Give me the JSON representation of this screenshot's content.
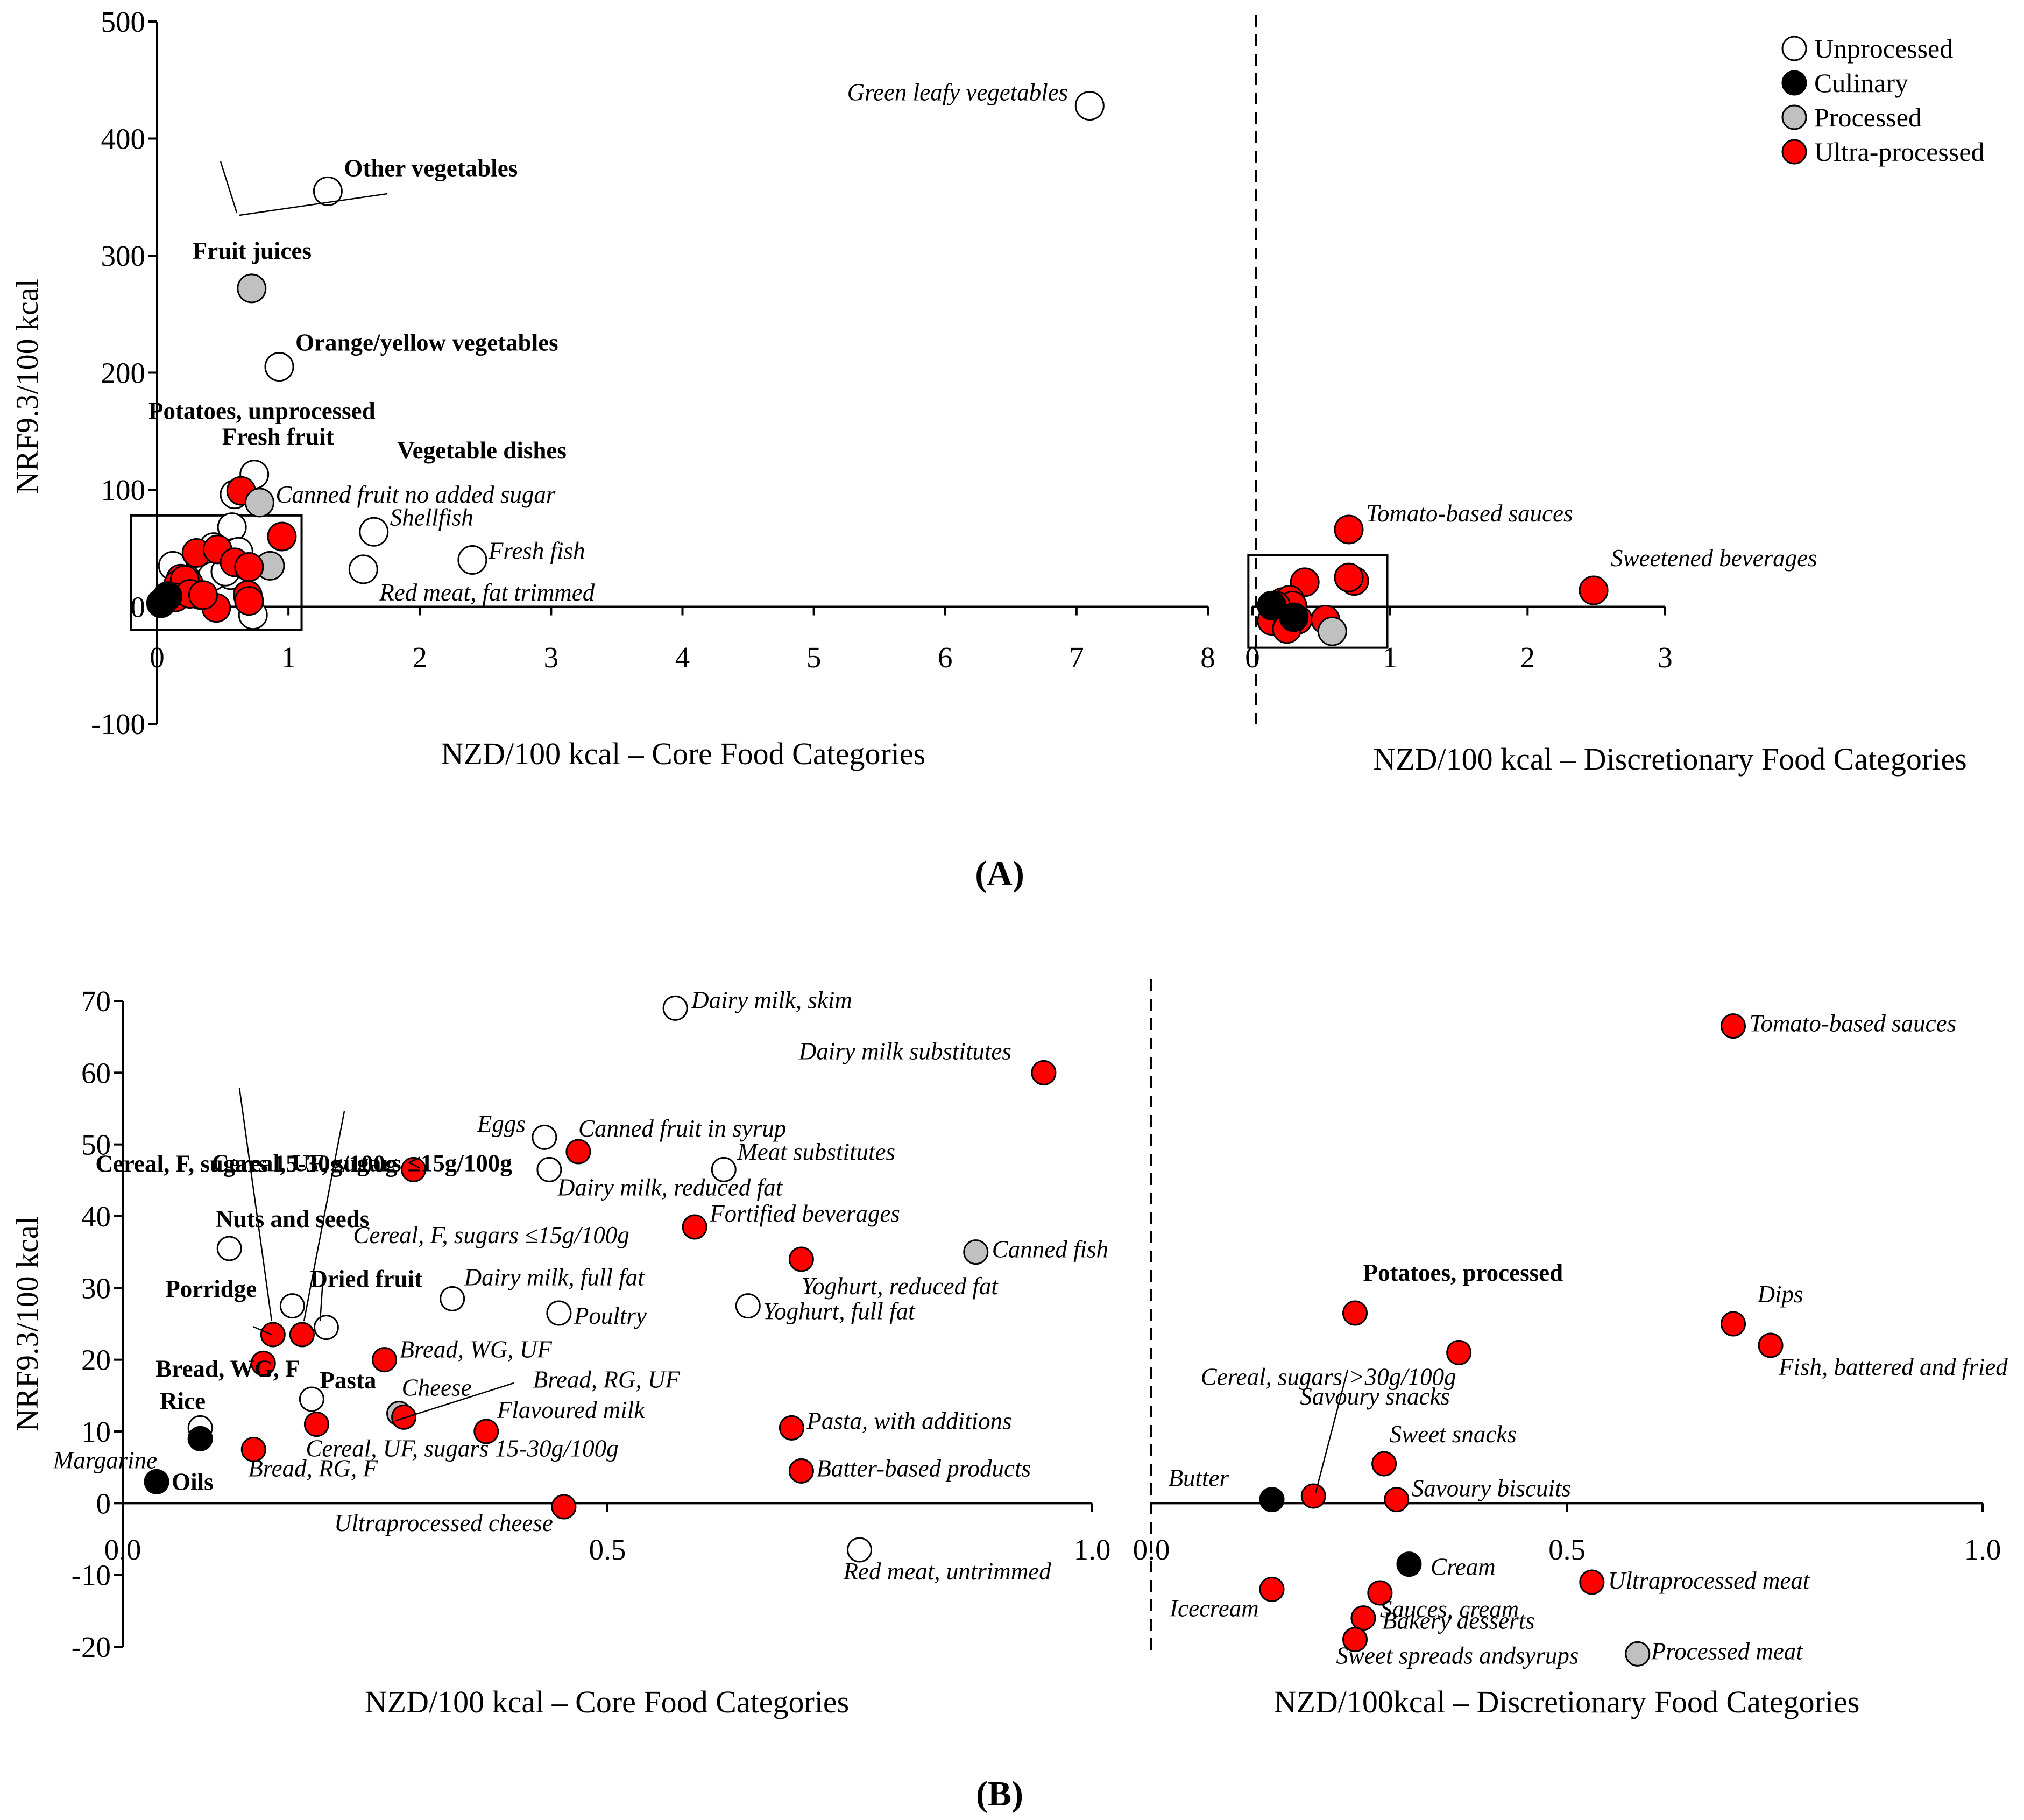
{
  "legend": [
    {
      "key": "U",
      "label": "Unprocessed",
      "color": "#ffffff"
    },
    {
      "key": "C",
      "label": "Culinary",
      "color": "#000000"
    },
    {
      "key": "P",
      "label": "Processed",
      "color": "#c0c0c0"
    },
    {
      "key": "X",
      "label": "Ultra-processed",
      "color": "#ff0000"
    }
  ],
  "panel_labels": {
    "A": "(A)",
    "B": "(B)"
  },
  "chart_data": [
    {
      "type": "scatter",
      "panel": "A",
      "ylabel": "NRF9.3/100 kcal",
      "ylim": [
        -100,
        500
      ],
      "yticks": [
        "-100",
        "0",
        "100",
        "200",
        "300",
        "400",
        "500"
      ],
      "left": {
        "xlabel": "NZD/100 kcal – Core Food Categories",
        "xlim": [
          0,
          8
        ],
        "xticks": [
          "0",
          "1",
          "2",
          "3",
          "4",
          "5",
          "6",
          "7",
          "8"
        ],
        "points": [
          {
            "x": 7.1,
            "y": 428,
            "type": "U",
            "label": "Green leafy vegetables",
            "style": "italic"
          },
          {
            "x": 1.3,
            "y": 355,
            "type": "U",
            "label": "Other vegetables",
            "style": "bold"
          },
          {
            "x": 0.72,
            "y": 272,
            "type": "P",
            "label": "Fruit juices",
            "style": "bold"
          },
          {
            "x": 0.93,
            "y": 205,
            "type": "U",
            "label": "Orange/yellow vegetables",
            "style": "bold"
          },
          {
            "x": 0.59,
            "y": 96,
            "type": "U",
            "label": "Potatoes, unprocessed",
            "style": "bold"
          },
          {
            "x": 0.74,
            "y": 113,
            "type": "U",
            "label": "Fresh fruit",
            "style": "bold"
          },
          {
            "x": 0.64,
            "y": 99,
            "type": "X",
            "label": "Vegetable dishes",
            "style": "bold"
          },
          {
            "x": 0.78,
            "y": 89,
            "type": "P",
            "label": "Canned fruit no added sugar",
            "style": "italic"
          },
          {
            "x": 1.65,
            "y": 64,
            "type": "U",
            "label": "Shellfish",
            "style": "italic"
          },
          {
            "x": 2.4,
            "y": 40,
            "type": "U",
            "label": "Fresh fish",
            "style": "italic"
          },
          {
            "x": 1.57,
            "y": 32,
            "type": "U",
            "label": "Red meat, fat trimmed",
            "style": "italic"
          },
          {
            "x": 0.57,
            "y": 68,
            "type": "U"
          },
          {
            "x": 0.95,
            "y": 60,
            "type": "X"
          },
          {
            "x": 0.22,
            "y": 24,
            "type": "U"
          },
          {
            "x": 0.12,
            "y": 35,
            "type": "U"
          },
          {
            "x": 0.43,
            "y": 51,
            "type": "U"
          },
          {
            "x": 0.58,
            "y": 46,
            "type": "U"
          },
          {
            "x": 0.62,
            "y": 47,
            "type": "U"
          },
          {
            "x": 0.42,
            "y": 26,
            "type": "U"
          },
          {
            "x": 0.56,
            "y": 27,
            "type": "U"
          },
          {
            "x": 0.52,
            "y": 30,
            "type": "U"
          },
          {
            "x": 0.73,
            "y": -7,
            "type": "U"
          },
          {
            "x": 0.86,
            "y": 35,
            "type": "P"
          },
          {
            "x": 0.17,
            "y": 12,
            "type": "P"
          },
          {
            "x": 0.18,
            "y": 13,
            "type": "U"
          },
          {
            "x": 0.3,
            "y": 46,
            "type": "X"
          },
          {
            "x": 0.46,
            "y": 49,
            "type": "X"
          },
          {
            "x": 0.59,
            "y": 38,
            "type": "X"
          },
          {
            "x": 0.7,
            "y": 34,
            "type": "X"
          },
          {
            "x": 0.69,
            "y": 10,
            "type": "X"
          },
          {
            "x": 0.7,
            "y": 5,
            "type": "X"
          },
          {
            "x": 0.45,
            "y": -1,
            "type": "X"
          },
          {
            "x": 0.18,
            "y": 24,
            "type": "X"
          },
          {
            "x": 0.16,
            "y": 19,
            "type": "X"
          },
          {
            "x": 0.24,
            "y": 20,
            "type": "X"
          },
          {
            "x": 0.21,
            "y": 23,
            "type": "X"
          },
          {
            "x": 0.33,
            "y": 10,
            "type": "X"
          },
          {
            "x": 0.14,
            "y": 8,
            "type": "X"
          },
          {
            "x": 0.25,
            "y": 11,
            "type": "X"
          },
          {
            "x": 0.35,
            "y": 10,
            "type": "X"
          },
          {
            "x": 0.08,
            "y": 9,
            "type": "C"
          },
          {
            "x": 0.03,
            "y": 3,
            "type": "C"
          }
        ]
      },
      "right": {
        "xlabel": "NZD/100 kcal – Discretionary Food Categories",
        "xlim": [
          0,
          3
        ],
        "xticks": [
          "0",
          "1",
          "2",
          "3"
        ],
        "points": [
          {
            "x": 0.7,
            "y": 66,
            "type": "X",
            "label": "Tomato-based sauces",
            "style": "italic"
          },
          {
            "x": 2.48,
            "y": 14,
            "type": "X",
            "label": "Sweetened beverages",
            "style": "italic"
          },
          {
            "x": 0.38,
            "y": 21,
            "type": "X"
          },
          {
            "x": 0.74,
            "y": 22,
            "type": "X"
          },
          {
            "x": 0.7,
            "y": 25,
            "type": "X"
          },
          {
            "x": 0.22,
            "y": 4,
            "type": "X"
          },
          {
            "x": 0.33,
            "y": -11,
            "type": "X"
          },
          {
            "x": 0.53,
            "y": -11,
            "type": "X"
          },
          {
            "x": 0.24,
            "y": -16,
            "type": "X"
          },
          {
            "x": 0.27,
            "y": 6,
            "type": "X"
          },
          {
            "x": 0.14,
            "y": -12,
            "type": "X"
          },
          {
            "x": 0.26,
            "y": -13,
            "type": "X"
          },
          {
            "x": 0.29,
            "y": 1,
            "type": "X"
          },
          {
            "x": 0.17,
            "y": 1,
            "type": "X"
          },
          {
            "x": 0.25,
            "y": -19,
            "type": "X"
          },
          {
            "x": 0.58,
            "y": -21,
            "type": "P"
          },
          {
            "x": 0.14,
            "y": 1,
            "type": "C"
          },
          {
            "x": 0.3,
            "y": -9,
            "type": "C"
          }
        ]
      }
    },
    {
      "type": "scatter",
      "panel": "B",
      "ylabel": "NRF9.3/100 kcal",
      "ylim": [
        -20,
        70
      ],
      "yticks": [
        "-20",
        "-10",
        "0",
        "10",
        "20",
        "30",
        "40",
        "50",
        "60",
        "70"
      ],
      "left": {
        "xlabel": "NZD/100 kcal – Core Food Categories",
        "xlim": [
          0,
          1
        ],
        "xticks": [
          "0.0",
          "0.5",
          "1.0"
        ],
        "points": [
          {
            "x": 0.57,
            "y": 69,
            "type": "U",
            "label": "Dairy milk, skim",
            "style": "italic"
          },
          {
            "x": 0.95,
            "y": 60,
            "type": "X",
            "label": "Dairy milk substitutes",
            "style": "italic"
          },
          {
            "x": 0.3,
            "y": 46.5,
            "type": "X",
            "label": "Cereal, F, sugars 15-30g/100g",
            "style": "bold"
          },
          {
            "x": 0.435,
            "y": 51,
            "type": "U",
            "label": "Eggs",
            "style": "italic"
          },
          {
            "x": 0.47,
            "y": 49,
            "type": "X",
            "label": "Canned fruit in syrup",
            "style": "italic"
          },
          {
            "x": 0.44,
            "y": 46.5,
            "type": "U",
            "label": "Dairy milk, reduced fat",
            "style": "italic"
          },
          {
            "x": 0.62,
            "y": 46.5,
            "type": "U",
            "label": "Meat substitutes",
            "style": "italic"
          },
          {
            "x": 0.59,
            "y": 38.5,
            "type": "X",
            "label": "Fortified beverages",
            "style": "italic"
          },
          {
            "x": 0.11,
            "y": 35.5,
            "type": "U",
            "label": "Nuts and seeds",
            "style": "bold"
          },
          {
            "x": 0.7,
            "y": 34,
            "type": "X",
            "label": "Yoghurt, reduced fat",
            "style": "italic"
          },
          {
            "x": 0.88,
            "y": 35,
            "type": "P",
            "label": "Canned fish",
            "style": "italic"
          },
          {
            "x": 0.34,
            "y": 28.5,
            "type": "U",
            "label": "Dairy milk, full fat",
            "style": "italic"
          },
          {
            "x": 0.45,
            "y": 26.5,
            "type": "U",
            "label": "Poultry",
            "style": "italic"
          },
          {
            "x": 0.645,
            "y": 27.5,
            "type": "U",
            "label": "Yoghurt, full fat",
            "style": "italic"
          },
          {
            "x": 0.175,
            "y": 27.5,
            "type": "U",
            "label": "Cereal, UF, sugars ≤15g/100g",
            "style": "bold"
          },
          {
            "x": 0.21,
            "y": 24.5,
            "type": "U",
            "label": "Dried fruit",
            "style": "bold"
          },
          {
            "x": 0.155,
            "y": 23.5,
            "type": "X",
            "label": "Porridge",
            "style": "bold"
          },
          {
            "x": 0.185,
            "y": 23.5,
            "type": "X",
            "label": "Cereal, F, sugars ≤15g/100g",
            "style": "italic"
          },
          {
            "x": 0.145,
            "y": 19.5,
            "type": "X",
            "label": "Bread, WG, F",
            "style": "bold"
          },
          {
            "x": 0.27,
            "y": 20,
            "type": "X",
            "label": "Bread, WG, UF",
            "style": "italic"
          },
          {
            "x": 0.195,
            "y": 14.5,
            "type": "U",
            "label": "Pasta",
            "style": "bold"
          },
          {
            "x": 0.285,
            "y": 12.5,
            "type": "P",
            "label": "Cheese",
            "style": "italic"
          },
          {
            "x": 0.29,
            "y": 12,
            "type": "X",
            "label": "Bread, RG, UF",
            "style": "italic"
          },
          {
            "x": 0.2,
            "y": 11,
            "type": "X",
            "label": "Cereal, UF, sugars 15-30g/100g",
            "style": "italic"
          },
          {
            "x": 0.375,
            "y": 10,
            "type": "X",
            "label": "Flavoured milk",
            "style": "italic"
          },
          {
            "x": 0.08,
            "y": 10.5,
            "type": "U",
            "label": "Rice",
            "style": "bold"
          },
          {
            "x": 0.08,
            "y": 9,
            "type": "C",
            "label": "Margarine",
            "style": "italic"
          },
          {
            "x": 0.135,
            "y": 7.5,
            "type": "X",
            "label": "Bread, RG, F",
            "style": "italic"
          },
          {
            "x": 0.69,
            "y": 10.5,
            "type": "X",
            "label": "Pasta, with additions",
            "style": "italic"
          },
          {
            "x": 0.7,
            "y": 4.5,
            "type": "X",
            "label": "Batter-based products",
            "style": "italic"
          },
          {
            "x": 0.035,
            "y": 3,
            "type": "C",
            "label": "Oils",
            "style": "bold"
          },
          {
            "x": 0.455,
            "y": -0.5,
            "type": "X",
            "label": "Ultraprocessed cheese",
            "style": "italic"
          },
          {
            "x": 0.76,
            "y": -6.5,
            "type": "U",
            "label": "Red meat, untrimmed",
            "style": "italic"
          }
        ]
      },
      "right": {
        "xlabel": "NZD/100kcal – Discretionary Food Categories",
        "xlim": [
          0,
          1
        ],
        "xticks": [
          "0.0",
          "0.5",
          "1.0"
        ],
        "points": [
          {
            "x": 0.7,
            "y": 66.5,
            "type": "X",
            "label": "Tomato-based sauces",
            "style": "italic"
          },
          {
            "x": 0.7,
            "y": 25,
            "type": "X",
            "label": "Dips",
            "style": "italic"
          },
          {
            "x": 0.745,
            "y": 22,
            "type": "X",
            "label": "Fish, battered and fried",
            "style": "italic"
          },
          {
            "x": 0.245,
            "y": 26.5,
            "type": "X",
            "label": "Potatoes, processed",
            "style": "bold"
          },
          {
            "x": 0.37,
            "y": 21,
            "type": "X",
            "label": "Cereal, sugars >30g/100g",
            "style": "italic"
          },
          {
            "x": 0.195,
            "y": 1,
            "type": "X",
            "label": "Savoury snacks",
            "style": "italic"
          },
          {
            "x": 0.28,
            "y": 5.5,
            "type": "X",
            "label": "Sweet snacks",
            "style": "italic"
          },
          {
            "x": 0.295,
            "y": 0.5,
            "type": "X",
            "label": "Savoury biscuits",
            "style": "italic"
          },
          {
            "x": 0.145,
            "y": 0.5,
            "type": "C",
            "label": "Butter",
            "style": "italic"
          },
          {
            "x": 0.31,
            "y": -8.5,
            "type": "C",
            "label": "Cream",
            "style": "italic"
          },
          {
            "x": 0.145,
            "y": -12,
            "type": "X",
            "label": "Icecream",
            "style": "italic"
          },
          {
            "x": 0.275,
            "y": -12.5,
            "type": "X",
            "label": "Sauces, cream",
            "style": "italic"
          },
          {
            "x": 0.53,
            "y": -11,
            "type": "X",
            "label": "Ultraprocessed meat",
            "style": "italic"
          },
          {
            "x": 0.255,
            "y": -16,
            "type": "X",
            "label": "Bakery desserts",
            "style": "italic"
          },
          {
            "x": 0.245,
            "y": -19,
            "type": "X",
            "label": "Sweet spreads andsyrups",
            "style": "italic"
          },
          {
            "x": 0.585,
            "y": -21,
            "type": "P",
            "label": "Processed meat",
            "style": "italic"
          }
        ]
      }
    }
  ]
}
